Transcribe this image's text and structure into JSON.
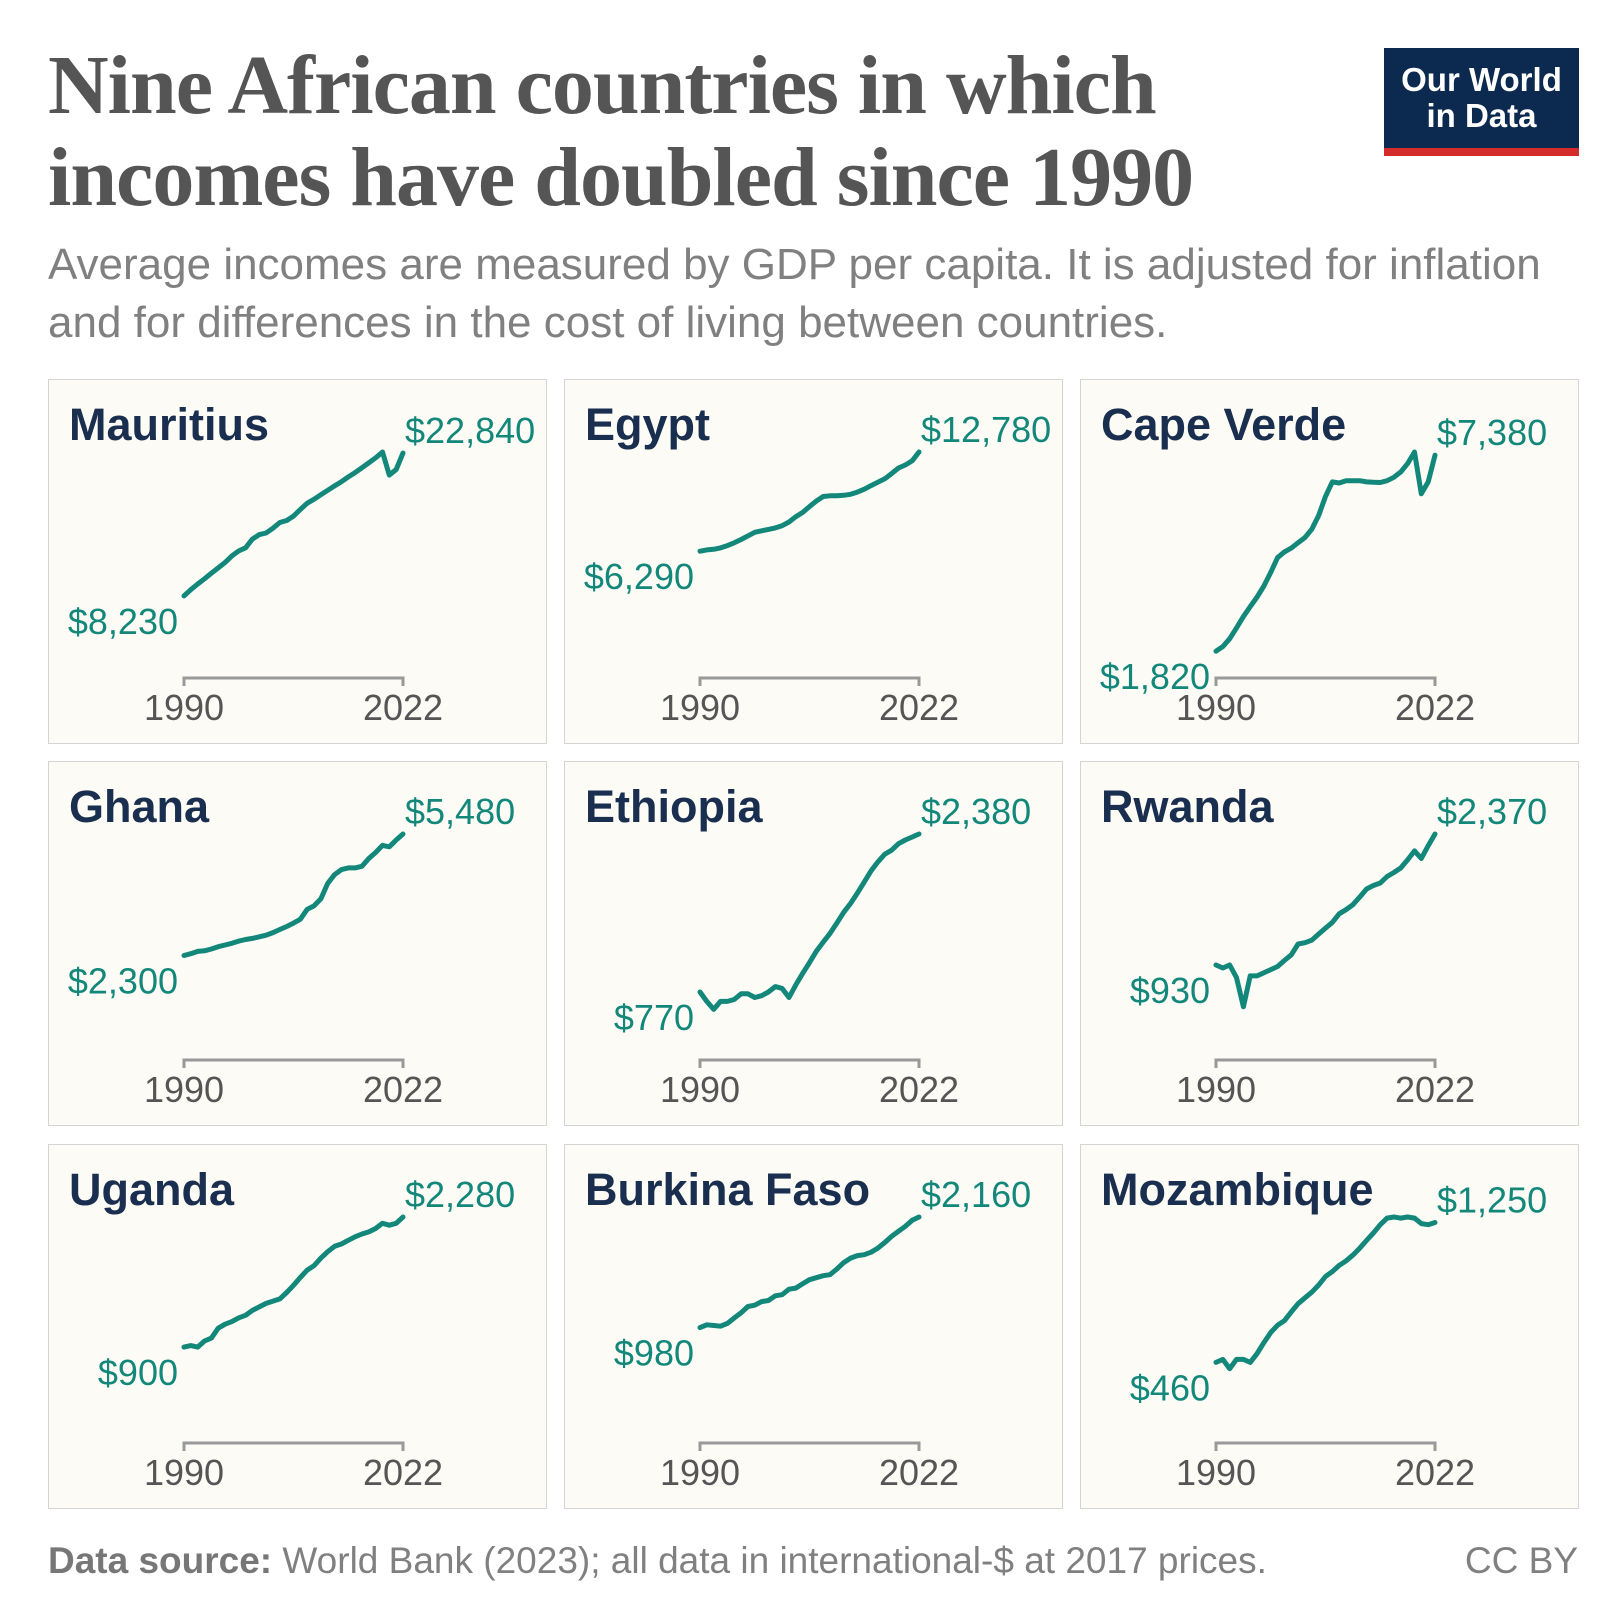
{
  "header": {
    "title": "Nine African countries in which incomes have doubled since 1990",
    "subtitle": "Average incomes are measured by GDP per capita. It is adjusted for inflation and for differences in the cost of living between countries.",
    "logo": "Our World in Data"
  },
  "footer": {
    "source_label": "Data source:",
    "source_text": " World Bank (2023); all data in international-$ at 2017 prices.",
    "license": "CC BY"
  },
  "colors": {
    "line": "#12877a",
    "title": "#1a2e4f",
    "panel_bg": "#fcfbf5",
    "axis": "#999999",
    "logo_bg": "#0c2a4f",
    "logo_bar": "#d42b2b"
  },
  "chart_data": {
    "type": "line",
    "x_range": [
      1990,
      2022
    ],
    "x_ticks": [
      "1990",
      "2022"
    ],
    "y_scale": "log",
    "series": [
      {
        "name": "Mauritius",
        "start_label": "$8,230",
        "end_label": "$22,840",
        "values": [
          8230,
          8600,
          8960,
          9300,
          9680,
          10050,
          10450,
          10950,
          11350,
          11600,
          12350,
          12750,
          12900,
          13350,
          13900,
          14100,
          14550,
          15250,
          15950,
          16400,
          16950,
          17500,
          18050,
          18600,
          19250,
          19850,
          20550,
          21300,
          22050,
          23000,
          19500,
          20300,
          22840
        ]
      },
      {
        "name": "Egypt",
        "start_label": "$6,290",
        "end_label": "$12,780",
        "values": [
          6290,
          6350,
          6380,
          6440,
          6550,
          6680,
          6840,
          7020,
          7200,
          7280,
          7350,
          7430,
          7550,
          7750,
          8050,
          8300,
          8650,
          9000,
          9300,
          9350,
          9350,
          9380,
          9450,
          9600,
          9800,
          10050,
          10300,
          10550,
          10950,
          11400,
          11650,
          12000,
          12780
        ]
      },
      {
        "name": "Cape Verde",
        "start_label": "$1,820",
        "end_label": "$7,380",
        "values": [
          1820,
          1880,
          1990,
          2150,
          2330,
          2500,
          2680,
          2900,
          3200,
          3550,
          3700,
          3800,
          3950,
          4100,
          4350,
          4800,
          5500,
          6100,
          6050,
          6150,
          6150,
          6150,
          6100,
          6080,
          6070,
          6150,
          6300,
          6550,
          6950,
          7550,
          5600,
          6100,
          7380
        ]
      },
      {
        "name": "Ghana",
        "start_label": "$2,300",
        "end_label": "$5,480",
        "values": [
          2300,
          2330,
          2370,
          2380,
          2410,
          2450,
          2480,
          2510,
          2550,
          2580,
          2600,
          2630,
          2660,
          2710,
          2770,
          2830,
          2900,
          2980,
          3200,
          3280,
          3450,
          3850,
          4100,
          4250,
          4300,
          4300,
          4350,
          4600,
          4800,
          5050,
          5000,
          5250,
          5480
        ]
      },
      {
        "name": "Ethiopia",
        "start_label": "$770",
        "end_label": "$2,380",
        "values": [
          770,
          720,
          680,
          720,
          720,
          730,
          760,
          760,
          740,
          750,
          770,
          800,
          790,
          740,
          810,
          880,
          950,
          1030,
          1100,
          1170,
          1260,
          1360,
          1450,
          1560,
          1690,
          1830,
          1950,
          2060,
          2120,
          2220,
          2280,
          2330,
          2380
        ]
      },
      {
        "name": "Rwanda",
        "start_label": "$930",
        "end_label": "$2,370",
        "values": [
          930,
          910,
          930,
          850,
          690,
          860,
          860,
          880,
          900,
          920,
          960,
          1000,
          1080,
          1090,
          1110,
          1160,
          1210,
          1260,
          1340,
          1380,
          1430,
          1510,
          1600,
          1640,
          1670,
          1750,
          1800,
          1860,
          1970,
          2100,
          1990,
          2180,
          2370
        ]
      },
      {
        "name": "Uganda",
        "start_label": "$900",
        "end_label": "$2,280",
        "values": [
          900,
          910,
          900,
          940,
          960,
          1030,
          1060,
          1080,
          1110,
          1130,
          1170,
          1200,
          1230,
          1250,
          1270,
          1330,
          1400,
          1480,
          1560,
          1610,
          1700,
          1780,
          1850,
          1880,
          1930,
          1980,
          2020,
          2050,
          2100,
          2180,
          2150,
          2180,
          2280
        ]
      },
      {
        "name": "Burkina Faso",
        "start_label": "$980",
        "end_label": "$2,160",
        "values": [
          980,
          1000,
          995,
          990,
          1010,
          1050,
          1090,
          1140,
          1150,
          1180,
          1190,
          1230,
          1240,
          1290,
          1300,
          1340,
          1380,
          1400,
          1420,
          1430,
          1490,
          1560,
          1610,
          1640,
          1650,
          1680,
          1730,
          1800,
          1880,
          1950,
          2020,
          2110,
          2160
        ]
      },
      {
        "name": "Mozambique",
        "start_label": "$460",
        "end_label": "$1,250",
        "values": [
          460,
          470,
          440,
          470,
          470,
          460,
          490,
          530,
          570,
          600,
          620,
          660,
          700,
          730,
          760,
          800,
          850,
          880,
          920,
          950,
          990,
          1040,
          1100,
          1160,
          1230,
          1290,
          1300,
          1290,
          1300,
          1290,
          1240,
          1230,
          1250
        ]
      }
    ]
  }
}
